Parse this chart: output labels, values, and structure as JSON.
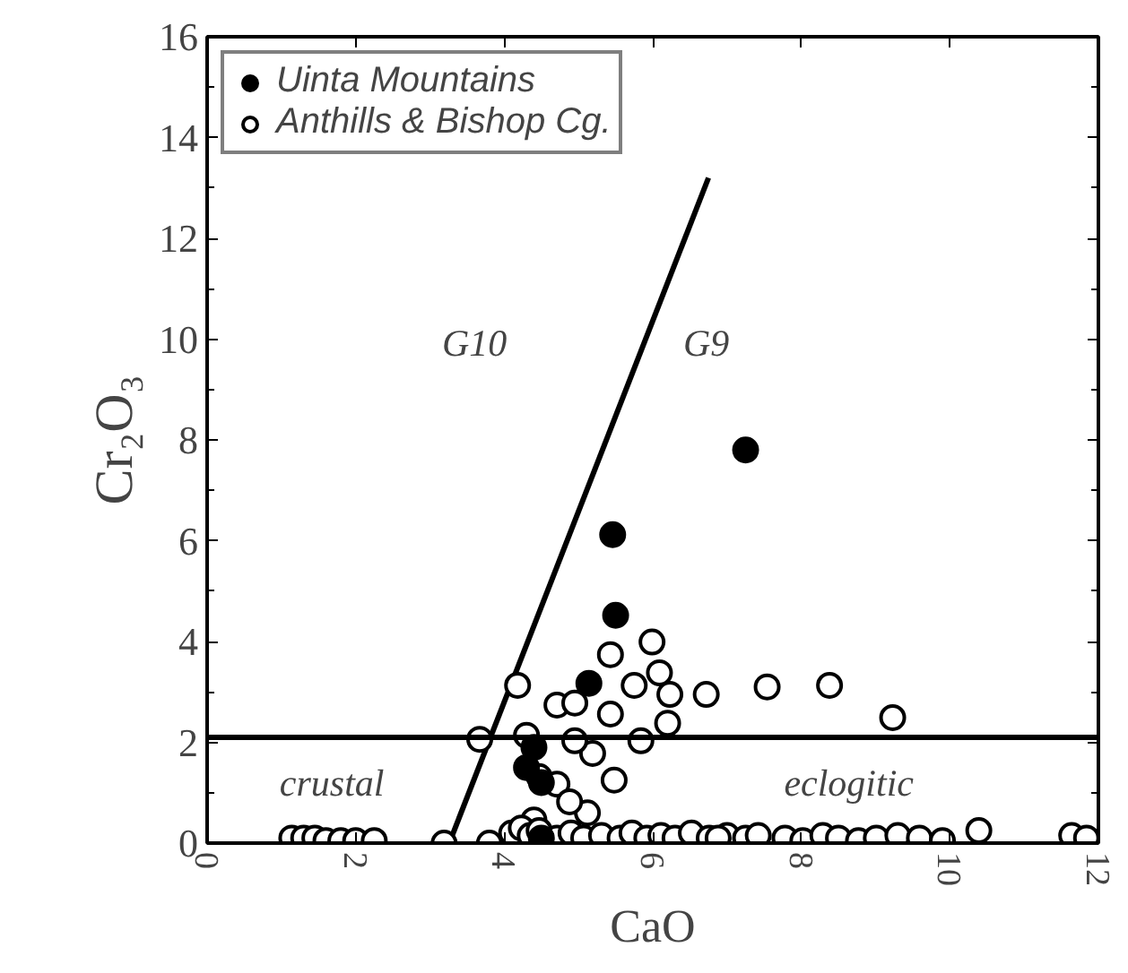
{
  "chart_data": {
    "type": "scatter",
    "xlabel": "CaO",
    "ylabel": "Cr₂O₃",
    "xlim": [
      0,
      12
    ],
    "ylim": [
      0,
      16
    ],
    "xticks": [
      0,
      2,
      4,
      6,
      8,
      10,
      12
    ],
    "yticks": [
      0,
      2,
      4,
      6,
      8,
      10,
      12,
      14,
      16
    ],
    "legend": "top left",
    "grid": false,
    "series": [
      {
        "name": "Uinta Mountains",
        "color": "#000000",
        "marker": "circle",
        "x": [
          5.46,
          5.5,
          7.25,
          5.14,
          4.4,
          4.3,
          4.5,
          4.5
        ],
        "values": [
          6.12,
          4.52,
          7.8,
          3.17,
          1.9,
          1.5,
          1.2,
          0.1
        ]
      },
      {
        "name": "Anthills & Bishop Cg.",
        "color": "#000000",
        "marker": "circle_open",
        "x": [
          1.14,
          1.3,
          1.45,
          1.6,
          1.8,
          2.0,
          2.25,
          3.19,
          3.8,
          3.67,
          4.18,
          5.99,
          5.43,
          6.72,
          6.09,
          6.23,
          5.75,
          4.71,
          4.95,
          5.43,
          6.2,
          5.84,
          4.3,
          5.19,
          4.71,
          5.48,
          4.47,
          4.95,
          5.12,
          4.88,
          4.4,
          4.1,
          4.23,
          4.35,
          4.47,
          4.71,
          4.9,
          5.07,
          5.31,
          5.56,
          5.72,
          5.92,
          6.11,
          6.3,
          6.52,
          6.76,
          7.0,
          7.25,
          7.54,
          8.38,
          9.23,
          6.88,
          7.42,
          7.78,
          8.02,
          8.29,
          8.5,
          8.77,
          9.01,
          9.3,
          9.59,
          9.9,
          10.39,
          11.64,
          11.84
        ],
        "values": [
          0.1,
          0.1,
          0.1,
          0.05,
          0.05,
          0.05,
          0.05,
          0,
          0,
          2.06,
          3.13,
          3.99,
          3.74,
          2.95,
          3.38,
          2.95,
          3.13,
          2.74,
          2.78,
          2.56,
          2.38,
          2.03,
          2.14,
          1.78,
          1.17,
          1.25,
          1.32,
          2.03,
          0.6,
          0.82,
          0.46,
          0.2,
          0.3,
          0.15,
          0.25,
          0.1,
          0.2,
          0.1,
          0.15,
          0.1,
          0.2,
          0.1,
          0.15,
          0.1,
          0.2,
          0.1,
          0.15,
          0.1,
          3.1,
          3.13,
          2.49,
          0.1,
          0.15,
          0.1,
          0.05,
          0.15,
          0.1,
          0.05,
          0.1,
          0.15,
          0.1,
          0.05,
          0.25,
          0.15,
          0.1
        ]
      },
      {
        "type": "line",
        "color": "#000000",
        "x": [
          3.26,
          6.75
        ],
        "values": [
          0,
          13.2
        ]
      }
    ],
    "ref_lines": [
      {
        "axis": "y",
        "value": 2.1,
        "color": "#000000"
      }
    ],
    "annotations": [
      "G10",
      "G9",
      "crustal",
      "eclogitic"
    ]
  }
}
